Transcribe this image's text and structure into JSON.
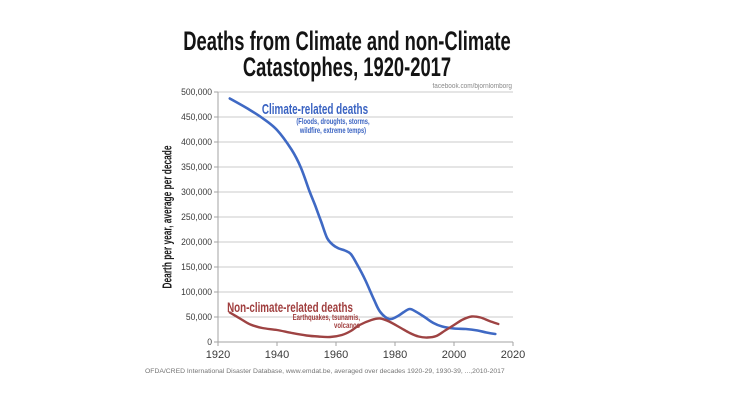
{
  "slide": {
    "title_line1": "Deaths from Climate and non-Climate",
    "title_line2": "Catastophes, 1920-2017",
    "credit": "facebook.com/bjornlomborg",
    "footer": "OFDA/CRED International Disaster Database, www.emdat.be, averaged over decades 1920-29, 1930-39, ...,2010-2017"
  },
  "annotations": {
    "climate": {
      "label": "Climate-related deaths",
      "sub_line1": "(Floods, droughts, storms,",
      "sub_line2": "wildfire, extreme temps)",
      "color": "#3a63c2"
    },
    "non_climate": {
      "label": "Non-climate-related deaths",
      "sub_line1": "Earthquakes, tsunamis,",
      "sub_line2": "volcanos",
      "color": "#a03e3e"
    }
  },
  "chart_data": {
    "type": "line",
    "title": "Deaths from Climate and non-Climate Catastophes, 1920-2017",
    "xlabel": "",
    "ylabel": "Dearth per year, average per decade",
    "xlim": [
      1920,
      2020
    ],
    "ylim": [
      0,
      500000
    ],
    "grid": true,
    "legend_position": "inline-annotations",
    "x_ticks": [
      1920,
      1940,
      1960,
      1980,
      2000,
      2020
    ],
    "x_tick_labels": [
      "1920",
      "1940",
      "1960",
      "1980",
      "2000",
      "2020"
    ],
    "y_ticks": [
      0,
      50000,
      100000,
      150000,
      200000,
      250000,
      300000,
      350000,
      400000,
      450000,
      500000
    ],
    "y_tick_labels": [
      "0",
      "50,000",
      "100,000",
      "150,000",
      "200,000",
      "250,000",
      "300,000",
      "350,000",
      "400,000",
      "450,000",
      "500,000"
    ],
    "series": [
      {
        "name": "Climate-related deaths",
        "description": "Floods, droughts, storms, wildfire, extreme temps",
        "color": "#3f69c4",
        "stroke_width": 2.6,
        "points": [
          [
            1924,
            487000
          ],
          [
            1930,
            467000
          ],
          [
            1935,
            448000
          ],
          [
            1940,
            424000
          ],
          [
            1945,
            384000
          ],
          [
            1948,
            350000
          ],
          [
            1951,
            302000
          ],
          [
            1953,
            272000
          ],
          [
            1955,
            240000
          ],
          [
            1957,
            208000
          ],
          [
            1959,
            194000
          ],
          [
            1961,
            187000
          ],
          [
            1963,
            183000
          ],
          [
            1965,
            176000
          ],
          [
            1967,
            157000
          ],
          [
            1970,
            123000
          ],
          [
            1973,
            83000
          ],
          [
            1975,
            60000
          ],
          [
            1978,
            46000
          ],
          [
            1981,
            52000
          ],
          [
            1983,
            60000
          ],
          [
            1985,
            66000
          ],
          [
            1987,
            61000
          ],
          [
            1990,
            50000
          ],
          [
            1993,
            38000
          ],
          [
            1996,
            31000
          ],
          [
            2000,
            27000
          ],
          [
            2004,
            26000
          ],
          [
            2008,
            23000
          ],
          [
            2011,
            19000
          ],
          [
            2014,
            16000
          ]
        ]
      },
      {
        "name": "Non-climate-related deaths",
        "description": "Earthquakes, tsunamis, volcanos",
        "color": "#9e4343",
        "stroke_width": 2.4,
        "points": [
          [
            1924,
            59000
          ],
          [
            1928,
            45000
          ],
          [
            1931,
            35000
          ],
          [
            1935,
            28000
          ],
          [
            1940,
            24000
          ],
          [
            1945,
            18000
          ],
          [
            1950,
            13000
          ],
          [
            1954,
            11000
          ],
          [
            1958,
            10000
          ],
          [
            1962,
            14000
          ],
          [
            1965,
            22000
          ],
          [
            1968,
            34000
          ],
          [
            1972,
            44000
          ],
          [
            1975,
            47000
          ],
          [
            1978,
            41000
          ],
          [
            1982,
            28000
          ],
          [
            1985,
            18000
          ],
          [
            1988,
            11000
          ],
          [
            1991,
            9000
          ],
          [
            1994,
            12000
          ],
          [
            1997,
            23000
          ],
          [
            2000,
            34000
          ],
          [
            2003,
            45000
          ],
          [
            2006,
            51000
          ],
          [
            2009,
            49000
          ],
          [
            2012,
            42000
          ],
          [
            2015,
            36000
          ]
        ]
      }
    ],
    "colors": {
      "gridline": "#cbcbcb",
      "axis": "#a3a3a3",
      "tick_text": "#3a3a3a"
    }
  }
}
